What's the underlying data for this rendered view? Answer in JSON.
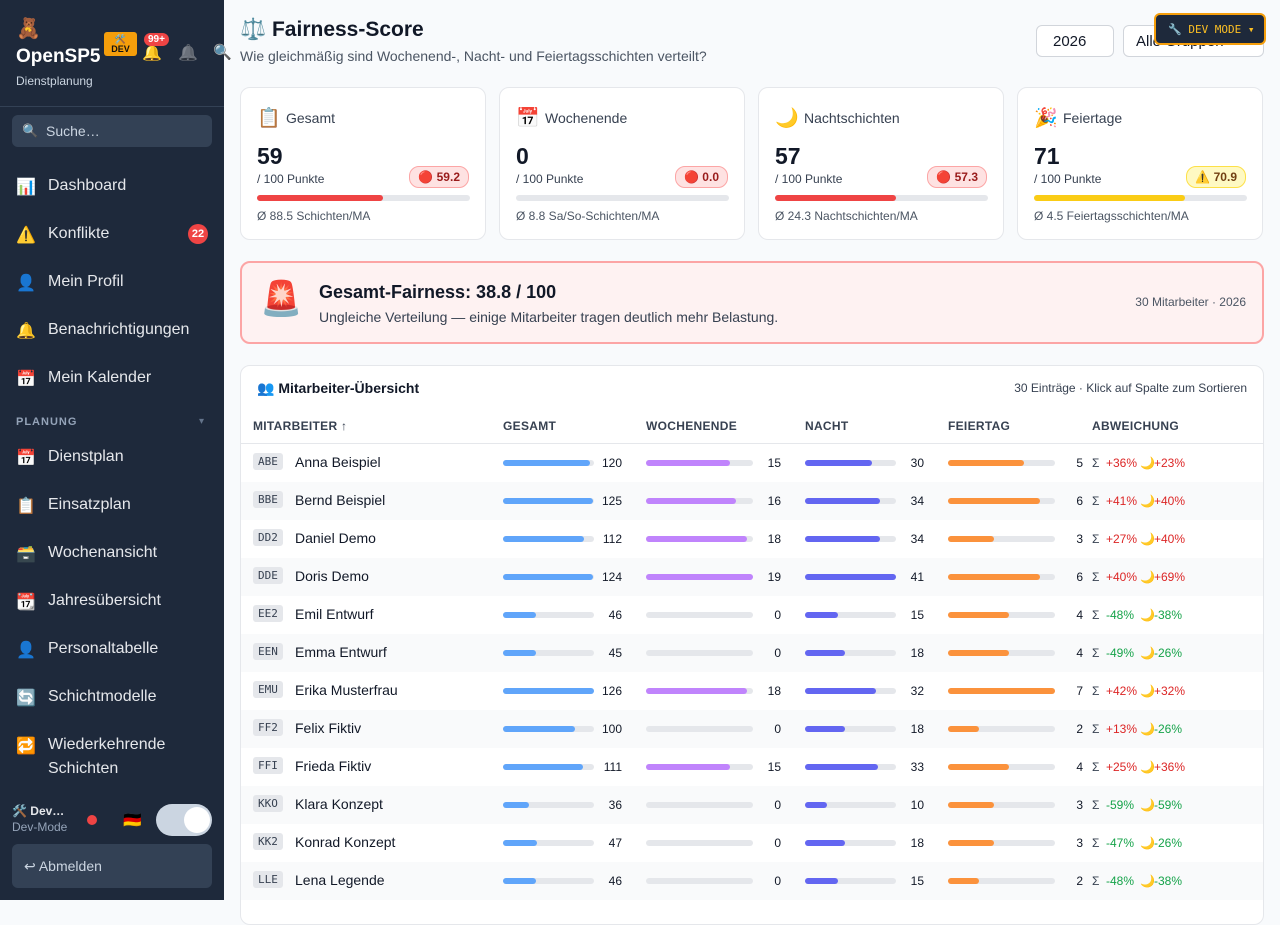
{
  "sidebar": {
    "logo_icon": "🧸",
    "app_name": "OpenSP5",
    "app_subtitle": "Dienstplanung",
    "dev_badge_icon": "🛠️",
    "dev_badge": "DEV",
    "bell_icon": "🔔",
    "notification_badge": "99+",
    "bell_outline_icon": "🔔",
    "search_icon": "🔍",
    "search_placeholder": "Suche…",
    "nav": [
      {
        "icon": "📊",
        "label": "Dashboard"
      },
      {
        "icon": "⚠️",
        "label": "Konflikte",
        "badge": "22"
      },
      {
        "icon": "👤",
        "label": "Mein Profil"
      },
      {
        "icon": "🔔",
        "label": "Benachrichtigungen"
      },
      {
        "icon": "📅",
        "label": "Mein Kalender"
      }
    ],
    "section_label": "PLANUNG",
    "section_caret": "▾",
    "planning_nav": [
      {
        "icon": "📅",
        "label": "Dienstplan"
      },
      {
        "icon": "📋",
        "label": "Einsatzplan"
      },
      {
        "icon": "🗃️",
        "label": "Wochenansicht"
      },
      {
        "icon": "📆",
        "label": "Jahresübersicht"
      },
      {
        "icon": "👤",
        "label": "Personaltabelle"
      },
      {
        "icon": "🔄",
        "label": "Schichtmodelle"
      },
      {
        "icon": "🔁",
        "label": "Wiederkehrende Schichten"
      }
    ],
    "user_name": "🛠️ Dev…",
    "user_role": "Dev-Mode",
    "language_flag": "🇩🇪",
    "logout": "↩ Abmelden"
  },
  "header": {
    "title": "⚖️ Fairness-Score",
    "subtitle": "Wie gleichmäßig sind Wochenend-, Nacht- und Feiertagsschichten verteilt?",
    "year_select": "2026",
    "group_select": "Alle Gruppen",
    "dev_mode_button": "🔧 DEV MODE ▾"
  },
  "score_scale": [
    0,
    100
  ],
  "cards": [
    {
      "icon": "📋",
      "label": "Gesamt",
      "value": 59,
      "unit": "/ 100 Punkte",
      "badge": "🔴 59.2",
      "badge_tone": "red",
      "color": "#ef4444",
      "footnote": "Ø 88.5 Schichten/MA"
    },
    {
      "icon": "📅",
      "label": "Wochenende",
      "value": 0,
      "unit": "/ 100 Punkte",
      "badge": "🔴 0.0",
      "badge_tone": "red",
      "color": "#ef4444",
      "footnote": "Ø 8.8 Sa/So-Schichten/MA"
    },
    {
      "icon": "🌙",
      "label": "Nachtschichten",
      "value": 57,
      "unit": "/ 100 Punkte",
      "badge": "🔴 57.3",
      "badge_tone": "red",
      "color": "#ef4444",
      "footnote": "Ø 24.3 Nachtschichten/MA"
    },
    {
      "icon": "🎉",
      "label": "Feiertage",
      "value": 71,
      "unit": "/ 100 Punkte",
      "badge": "⚠️ 70.9",
      "badge_tone": "yellow",
      "color": "#facc15",
      "footnote": "Ø 4.5 Feiertagsschichten/MA"
    }
  ],
  "banner": {
    "icon": "🚨",
    "title": "Gesamt-Fairness: 38.8 / 100",
    "text": "Ungleiche Verteilung — einige Mitarbeiter tragen deutlich mehr Belastung.",
    "meta": "30 Mitarbeiter · 2026"
  },
  "table": {
    "title": "👥 Mitarbeiter-Übersicht",
    "meta": "30 Einträge · Klick auf Spalte zum Sortieren",
    "columns": [
      "MITARBEITER ↑",
      "GESAMT",
      "WOCHENENDE",
      "NACHT",
      "FEIERTAG",
      "ABWEICHUNG"
    ],
    "bar_colors": [
      "#60a5fa",
      "#c084fc",
      "#6366f1",
      "#fb923c"
    ],
    "deviation_icons": [
      "Σ",
      "🌙"
    ],
    "rows": [
      [
        "ABE",
        "Anna Beispiel",
        120,
        15,
        30,
        5,
        "+36%",
        "+23%"
      ],
      [
        "BBE",
        "Bernd Beispiel",
        125,
        16,
        34,
        6,
        "+41%",
        "+40%"
      ],
      [
        "DD2",
        "Daniel Demo",
        112,
        18,
        34,
        3,
        "+27%",
        "+40%"
      ],
      [
        "DDE",
        "Doris Demo",
        124,
        19,
        41,
        6,
        "+40%",
        "+69%"
      ],
      [
        "EE2",
        "Emil Entwurf",
        46,
        0,
        15,
        4,
        "-48%",
        "-38%"
      ],
      [
        "EEN",
        "Emma Entwurf",
        45,
        0,
        18,
        4,
        "-49%",
        "-26%"
      ],
      [
        "EMU",
        "Erika Musterfrau",
        126,
        18,
        32,
        7,
        "+42%",
        "+32%"
      ],
      [
        "FF2",
        "Felix Fiktiv",
        100,
        0,
        18,
        2,
        "+13%",
        "-26%"
      ],
      [
        "FFI",
        "Frieda Fiktiv",
        111,
        15,
        33,
        4,
        "+25%",
        "+36%"
      ],
      [
        "KKO",
        "Klara Konzept",
        36,
        0,
        10,
        3,
        "-59%",
        "-59%"
      ],
      [
        "KK2",
        "Konrad Konzept",
        47,
        0,
        18,
        3,
        "-47%",
        "-26%"
      ],
      [
        "LLE",
        "Lena Legende",
        46,
        0,
        15,
        2,
        "-48%",
        "-38%"
      ]
    ]
  }
}
